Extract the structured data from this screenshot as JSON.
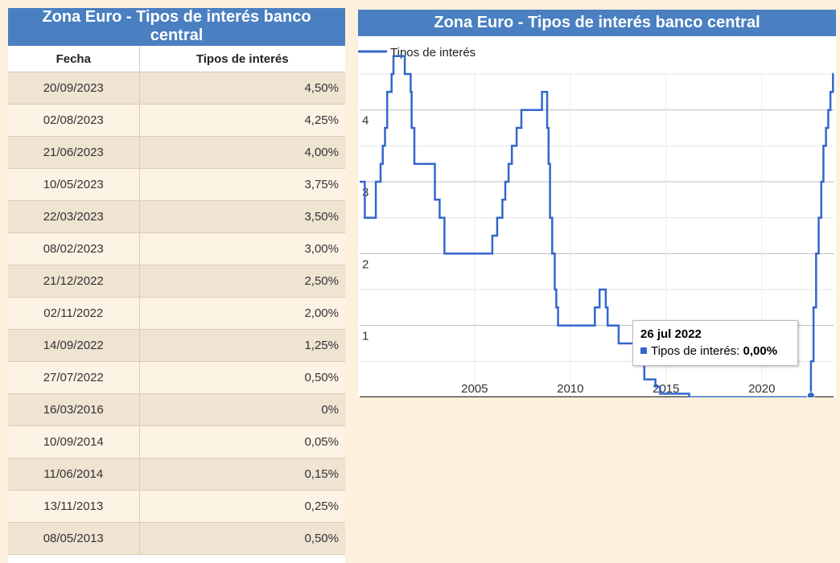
{
  "table": {
    "title": "Zona Euro - Tipos de interés banco central",
    "headers": {
      "date": "Fecha",
      "rate": "Tipos de interés"
    },
    "rows": [
      {
        "date": "20/09/2023",
        "rate": "4,50%"
      },
      {
        "date": "02/08/2023",
        "rate": "4,25%"
      },
      {
        "date": "21/06/2023",
        "rate": "4,00%"
      },
      {
        "date": "10/05/2023",
        "rate": "3,75%"
      },
      {
        "date": "22/03/2023",
        "rate": "3,50%"
      },
      {
        "date": "08/02/2023",
        "rate": "3,00%"
      },
      {
        "date": "21/12/2022",
        "rate": "2,50%"
      },
      {
        "date": "02/11/2022",
        "rate": "2,00%"
      },
      {
        "date": "14/09/2022",
        "rate": "1,25%"
      },
      {
        "date": "27/07/2022",
        "rate": "0,50%"
      },
      {
        "date": "16/03/2016",
        "rate": "0%"
      },
      {
        "date": "10/09/2014",
        "rate": "0,05%"
      },
      {
        "date": "11/06/2014",
        "rate": "0,15%"
      },
      {
        "date": "13/11/2013",
        "rate": "0,25%"
      },
      {
        "date": "08/05/2013",
        "rate": "0,50%"
      }
    ]
  },
  "chart_data": {
    "type": "line",
    "title": "Zona Euro - Tipos de interés banco central",
    "xlabel": "",
    "ylabel": "",
    "series": [
      {
        "name": "Tipos de interés",
        "color": "#3366cc",
        "step": true,
        "points": [
          [
            "1999-01-01",
            3.0
          ],
          [
            "1999-04-09",
            2.5
          ],
          [
            "1999-11-05",
            3.0
          ],
          [
            "2000-02-04",
            3.25
          ],
          [
            "2000-03-17",
            3.5
          ],
          [
            "2000-04-28",
            3.75
          ],
          [
            "2000-06-09",
            4.25
          ],
          [
            "2000-09-01",
            4.5
          ],
          [
            "2000-10-06",
            4.75
          ],
          [
            "2001-05-11",
            4.5
          ],
          [
            "2001-08-31",
            4.25
          ],
          [
            "2001-09-18",
            3.75
          ],
          [
            "2001-11-09",
            3.25
          ],
          [
            "2002-12-06",
            2.75
          ],
          [
            "2003-03-07",
            2.5
          ],
          [
            "2003-06-06",
            2.0
          ],
          [
            "2005-12-06",
            2.25
          ],
          [
            "2006-03-08",
            2.5
          ],
          [
            "2006-06-15",
            2.75
          ],
          [
            "2006-08-09",
            3.0
          ],
          [
            "2006-10-11",
            3.25
          ],
          [
            "2006-12-13",
            3.5
          ],
          [
            "2007-03-14",
            3.75
          ],
          [
            "2007-06-13",
            4.0
          ],
          [
            "2008-07-09",
            4.25
          ],
          [
            "2008-10-15",
            3.75
          ],
          [
            "2008-11-12",
            3.25
          ],
          [
            "2008-12-10",
            2.5
          ],
          [
            "2009-01-21",
            2.0
          ],
          [
            "2009-03-11",
            1.5
          ],
          [
            "2009-04-08",
            1.25
          ],
          [
            "2009-05-13",
            1.0
          ],
          [
            "2011-04-13",
            1.25
          ],
          [
            "2011-07-13",
            1.5
          ],
          [
            "2011-11-09",
            1.25
          ],
          [
            "2011-12-14",
            1.0
          ],
          [
            "2012-07-11",
            0.75
          ],
          [
            "2013-05-08",
            0.5
          ],
          [
            "2013-11-13",
            0.25
          ],
          [
            "2014-06-11",
            0.15
          ],
          [
            "2014-09-10",
            0.05
          ],
          [
            "2016-03-16",
            0.0
          ],
          [
            "2022-07-27",
            0.5
          ],
          [
            "2022-09-14",
            1.25
          ],
          [
            "2022-11-02",
            2.0
          ],
          [
            "2022-12-21",
            2.5
          ],
          [
            "2023-02-08",
            3.0
          ],
          [
            "2023-03-22",
            3.5
          ],
          [
            "2023-05-10",
            3.75
          ],
          [
            "2023-06-21",
            4.0
          ],
          [
            "2023-08-02",
            4.25
          ],
          [
            "2023-09-20",
            4.5
          ]
        ]
      }
    ],
    "x_ticks": [
      "2005",
      "2010",
      "2015",
      "2020"
    ],
    "y_ticks": [
      "1",
      "2",
      "3",
      "4"
    ],
    "xlim": [
      "1999-01-01",
      "2023-10-01"
    ],
    "ylim": [
      0,
      4.5
    ],
    "grid": true,
    "legend": "top-left",
    "tooltip": {
      "date": "26 jul 2022",
      "label": "Tipos de interés:",
      "value": "0,00%"
    }
  }
}
